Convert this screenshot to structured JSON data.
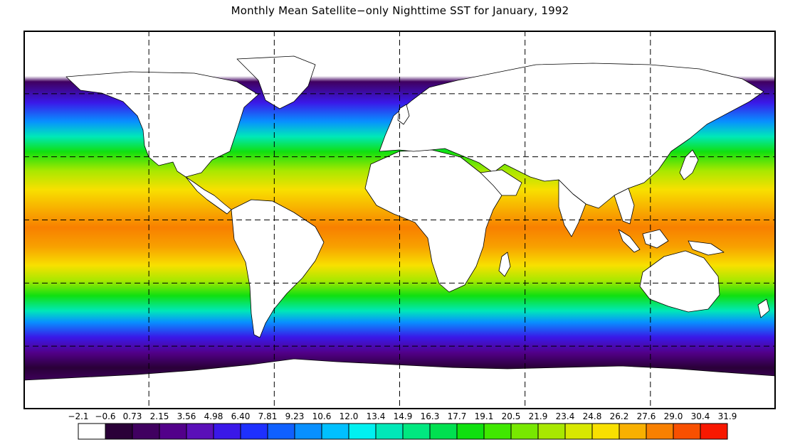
{
  "title": "Monthly Mean Satellite−only Nighttime SST for January, 1992",
  "colorbar": {
    "labels": [
      "−2.1",
      "−0.6",
      "0.73",
      "2.15",
      "3.56",
      "4.98",
      "6.40",
      "7.81",
      "9.23",
      "10.6",
      "12.0",
      "13.4",
      "14.9",
      "16.3",
      "17.7",
      "19.1",
      "20.5",
      "21.9",
      "23.4",
      "24.8",
      "26.2",
      "27.6",
      "29.0",
      "30.4",
      "31.9"
    ],
    "colors": [
      "#ffffff",
      "#2a0038",
      "#400060",
      "#52008a",
      "#5a10b8",
      "#3a18e8",
      "#1e30ff",
      "#1060ff",
      "#0890ff",
      "#00c0ff",
      "#00f0f0",
      "#00e8b8",
      "#00e880",
      "#00e050",
      "#10e010",
      "#40e800",
      "#78e800",
      "#a8e800",
      "#d8e800",
      "#f8e000",
      "#f8b000",
      "#f88000",
      "#f85000",
      "#f81800"
    ]
  },
  "map": {
    "colors": {
      "land": "#ffffff",
      "coastline": "#000000",
      "gridline": "#000000",
      "frame": "#000000"
    },
    "gridline_style": "dashed",
    "projection": "equirectangular",
    "lon_range": [
      -180,
      180
    ],
    "lat_range": [
      -90,
      90
    ]
  }
}
